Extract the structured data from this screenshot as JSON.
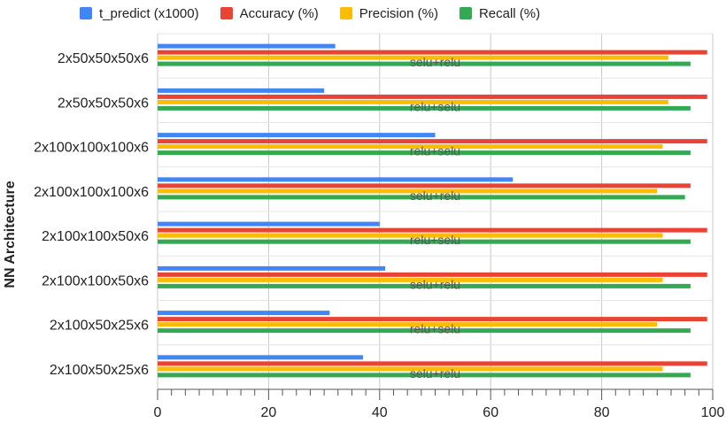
{
  "chart_data": {
    "type": "bar",
    "orientation": "horizontal",
    "ylabel": "NN Architecture",
    "xlabel": "",
    "xlim": [
      0,
      100
    ],
    "xticks": [
      "0",
      "20",
      "40",
      "60",
      "80",
      "100"
    ],
    "grid": true,
    "legend_position": "top",
    "categories": [
      "2x50x50x50x6",
      "2x50x50x50x6",
      "2x100x100x100x6",
      "2x100x100x100x6",
      "2x100x100x50x6",
      "2x100x100x50x6",
      "2x100x50x25x6",
      "2x100x50x25x6"
    ],
    "annotations": [
      "selu+relu",
      "relu+selu",
      "relu+selu",
      "selu+relu",
      "relu+selu",
      "selu+relu",
      "relu+selu",
      "selu+relu"
    ],
    "series": [
      {
        "name": "t_predict (x1000)",
        "color": "#4285F4",
        "values": [
          32,
          30,
          50,
          64,
          40,
          41,
          31,
          37
        ]
      },
      {
        "name": "Accuracy (%)",
        "color": "#EA4335",
        "values": [
          99,
          99,
          99,
          96,
          99,
          99,
          99,
          99
        ]
      },
      {
        "name": "Precision (%)",
        "color": "#FBBC04",
        "values": [
          92,
          92,
          91,
          90,
          91,
          91,
          90,
          91
        ]
      },
      {
        "name": "Recall (%)",
        "color": "#34A853",
        "values": [
          96,
          96,
          96,
          95,
          96,
          96,
          96,
          96
        ]
      }
    ]
  }
}
